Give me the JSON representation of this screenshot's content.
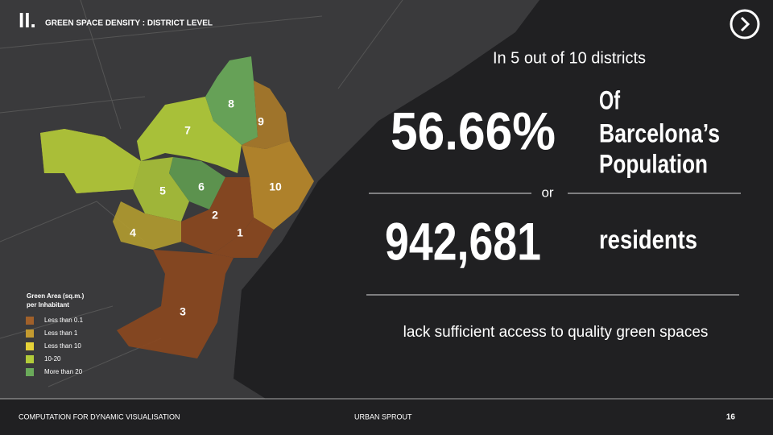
{
  "header": {
    "logo": "II.",
    "title": "GREEN SPACE DENSITY : DISTRICT LEVEL"
  },
  "headline": "In 5 out of 10 districts",
  "stat1": {
    "value": "56.66%",
    "label_lines": [
      "Of",
      "Barcelona’s",
      "Population"
    ]
  },
  "separator": "or",
  "stat2": {
    "value": "942,681",
    "label": "residents"
  },
  "conclusion": "lack sufficient access to quality green spaces",
  "legend": {
    "title_lines": [
      "Green Area (sq.m.)",
      "per Inhabitant"
    ],
    "items": [
      {
        "label": "Less than 0.1",
        "color": "#a0602a"
      },
      {
        "label": "Less than 1",
        "color": "#c39a30"
      },
      {
        "label": "Less than 10",
        "color": "#e6d238"
      },
      {
        "label": "10-20",
        "color": "#b2cc3a"
      },
      {
        "label": "More than 20",
        "color": "#6aaa5a"
      }
    ]
  },
  "districts": [
    {
      "label": "1",
      "color": "#8a4820"
    },
    {
      "label": "2",
      "color": "#8a4820"
    },
    {
      "label": "3",
      "color": "#b09a30"
    },
    {
      "label": "4",
      "color": "#c8b030"
    },
    {
      "label": "5",
      "color": "#a8c03a"
    },
    {
      "label": "6",
      "color": "#5f9a50"
    },
    {
      "label": "7",
      "color": "#b2cc3a"
    },
    {
      "label": "8",
      "color": "#6aaa5a"
    },
    {
      "label": "9",
      "color": "#a87a2a"
    },
    {
      "label": "10",
      "color": "#b8882a"
    }
  ],
  "footer": {
    "left": "COMPUTATION FOR DYNAMIC VISUALISATION",
    "center": "URBAN SPROUT",
    "page": "16"
  }
}
